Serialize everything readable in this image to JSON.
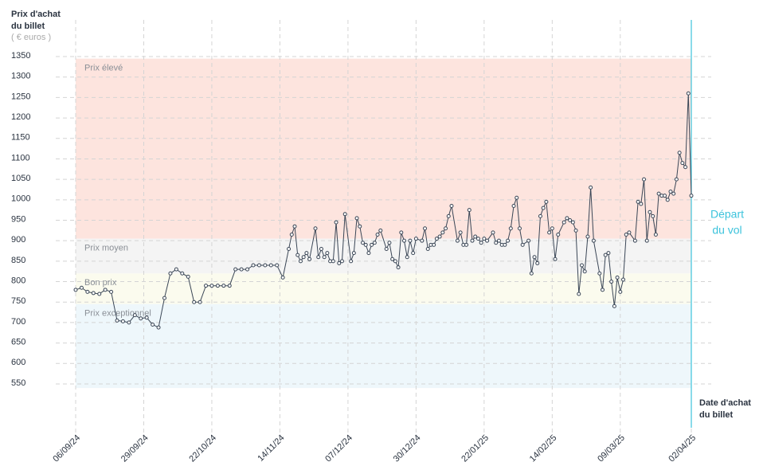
{
  "chart_data": {
    "type": "line",
    "y_label": [
      "Prix d'achat",
      "du billet"
    ],
    "y_unit": "( € euros )",
    "x_label": [
      "Date d'achat",
      "du billet"
    ],
    "color": "#3a4656",
    "ylim": [
      540,
      1360
    ],
    "yticks": [
      550,
      600,
      650,
      700,
      750,
      800,
      850,
      900,
      950,
      1000,
      1050,
      1100,
      1150,
      1200,
      1250,
      1300,
      1350
    ],
    "xlim": [
      "06/09/24",
      "02/04/25"
    ],
    "xticks": [
      "06/09/24",
      "29/09/24",
      "22/10/24",
      "14/11/24",
      "07/12/24",
      "30/12/24",
      "22/01/25",
      "14/02/25",
      "09/03/25",
      "02/04/25"
    ],
    "grid": true,
    "bands": [
      {
        "label": "Prix élevé",
        "range": [
          905,
          1345
        ],
        "color": "#fde4de"
      },
      {
        "label": "Prix moyen",
        "range": [
          820,
          905
        ],
        "color": "#f4f4f4"
      },
      {
        "label": "Bon prix",
        "range": [
          745,
          820
        ],
        "color": "#fbfbee"
      },
      {
        "label": "Prix exceptionnel",
        "range": [
          540,
          745
        ],
        "color": "#eef7fb"
      }
    ],
    "marker": {
      "label": [
        "Départ",
        "du vol"
      ],
      "x": "02/04/25",
      "color": "#3cc3dc"
    },
    "x": [
      "06/09/24",
      "08/09/24",
      "10/09/24",
      "12/09/24",
      "14/09/24",
      "16/09/24",
      "18/09/24",
      "20/09/24",
      "22/09/24",
      "24/09/24",
      "26/09/24",
      "28/09/24",
      "30/09/24",
      "02/10/24",
      "04/10/24",
      "06/10/24",
      "08/10/24",
      "10/10/24",
      "12/10/24",
      "14/10/24",
      "16/10/24",
      "18/10/24",
      "20/10/24",
      "22/10/24",
      "24/10/24",
      "26/10/24",
      "28/10/24",
      "30/10/24",
      "01/11/24",
      "03/11/24",
      "05/11/24",
      "07/11/24",
      "09/11/24",
      "11/11/24",
      "13/11/24",
      "15/11/24",
      "17/11/24",
      "18/11/24",
      "19/11/24",
      "20/11/24",
      "21/11/24",
      "22/11/24",
      "23/11/24",
      "24/11/24",
      "26/11/24",
      "27/11/24",
      "28/11/24",
      "29/11/24",
      "30/11/24",
      "01/12/24",
      "02/12/24",
      "03/12/24",
      "04/12/24",
      "05/12/24",
      "06/12/24",
      "08/12/24",
      "09/12/24",
      "10/12/24",
      "11/12/24",
      "12/12/24",
      "13/12/24",
      "14/12/24",
      "15/12/24",
      "16/12/24",
      "17/12/24",
      "18/12/24",
      "20/12/24",
      "21/12/24",
      "22/12/24",
      "23/12/24",
      "24/12/24",
      "25/12/24",
      "26/12/24",
      "27/12/24",
      "28/12/24",
      "29/12/24",
      "30/12/24",
      "01/01/25",
      "02/01/25",
      "03/01/25",
      "04/01/25",
      "05/01/25",
      "06/01/25",
      "07/01/25",
      "08/01/25",
      "09/01/25",
      "10/01/25",
      "11/01/25",
      "13/01/25",
      "14/01/25",
      "15/01/25",
      "16/01/25",
      "17/01/25",
      "18/01/25",
      "19/01/25",
      "20/01/25",
      "21/01/25",
      "22/01/25",
      "23/01/25",
      "25/01/25",
      "26/01/25",
      "27/01/25",
      "28/01/25",
      "29/01/25",
      "30/01/25",
      "31/01/25",
      "01/02/25",
      "02/02/25",
      "03/02/25",
      "04/02/25",
      "06/02/25",
      "07/02/25",
      "08/02/25",
      "09/02/25",
      "10/02/25",
      "11/02/25",
      "12/02/25",
      "13/02/25",
      "14/02/25",
      "15/02/25",
      "16/02/25",
      "18/02/25",
      "19/02/25",
      "20/02/25",
      "21/02/25",
      "22/02/25",
      "23/02/25",
      "24/02/25",
      "25/02/25",
      "26/02/25",
      "27/02/25",
      "28/02/25",
      "02/03/25",
      "03/03/25",
      "04/03/25",
      "05/03/25",
      "06/03/25",
      "07/03/25",
      "08/03/25",
      "09/03/25",
      "10/03/25",
      "11/03/25",
      "12/03/25",
      "14/03/25",
      "15/03/25",
      "16/03/25",
      "17/03/25",
      "18/03/25",
      "19/03/25",
      "20/03/25",
      "21/03/25",
      "22/03/25",
      "23/03/25",
      "24/03/25",
      "25/03/25",
      "26/03/25",
      "27/03/25",
      "28/03/25",
      "29/03/25",
      "30/03/25",
      "31/03/25",
      "01/04/25",
      "02/04/25"
    ],
    "values": [
      780,
      785,
      775,
      772,
      770,
      780,
      775,
      705,
      703,
      700,
      718,
      710,
      712,
      695,
      688,
      760,
      820,
      830,
      820,
      812,
      750,
      750,
      790,
      790,
      790,
      790,
      790,
      830,
      830,
      830,
      840,
      840,
      840,
      840,
      840,
      810,
      880,
      915,
      935,
      865,
      850,
      860,
      870,
      855,
      930,
      860,
      880,
      860,
      870,
      850,
      850,
      945,
      845,
      850,
      965,
      850,
      870,
      955,
      935,
      895,
      890,
      870,
      890,
      895,
      915,
      925,
      880,
      895,
      855,
      850,
      835,
      920,
      900,
      860,
      900,
      870,
      905,
      900,
      930,
      880,
      890,
      890,
      905,
      910,
      920,
      930,
      960,
      985,
      900,
      920,
      890,
      890,
      975,
      900,
      910,
      905,
      895,
      905,
      900,
      920,
      895,
      900,
      890,
      890,
      900,
      930,
      985,
      1005,
      930,
      890,
      900,
      820,
      860,
      845,
      960,
      980,
      995,
      920,
      930,
      855,
      915,
      945,
      955,
      950,
      945,
      925,
      770,
      840,
      825,
      910,
      1030,
      900,
      820,
      780,
      865,
      870,
      800,
      740,
      810,
      775,
      805,
      915,
      920,
      900,
      995,
      990,
      1050,
      900,
      970,
      960,
      915,
      1015,
      1010,
      1010,
      1000,
      1020,
      1015,
      1050,
      1115,
      1090,
      1080,
      1260,
      1010
    ]
  }
}
